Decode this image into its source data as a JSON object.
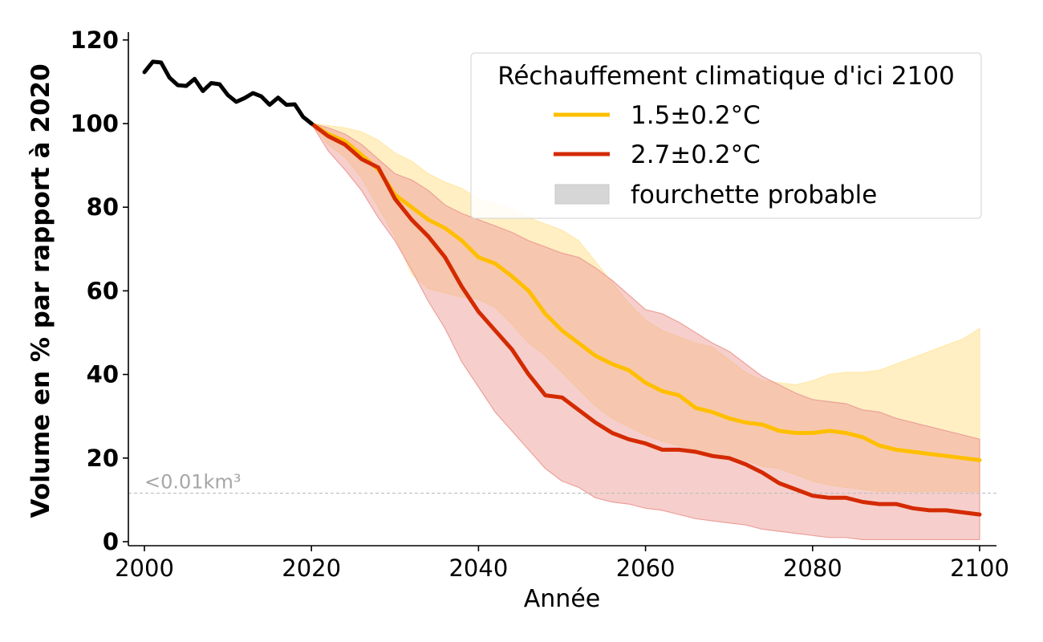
{
  "chart_data": {
    "type": "line",
    "xlabel": "Année",
    "ylabel": "Volume en % par rapport à 2020",
    "xlim": [
      1998,
      2102
    ],
    "ylim": [
      -1,
      121
    ],
    "x_ticks": [
      2000,
      2020,
      2040,
      2060,
      2080,
      2100
    ],
    "y_ticks": [
      0,
      20,
      40,
      60,
      80,
      100,
      120
    ],
    "grid": false,
    "legend": {
      "title": "Réchauffement climatique d'ici 2100",
      "placement": "top-right",
      "entries": [
        "1.5±0.2°C",
        "2.7±0.2°C",
        "fourchette probable"
      ]
    },
    "threshold": {
      "y": 11.6,
      "label": "<0.01km³"
    },
    "colors": {
      "historical": "#000000",
      "low": "#ffbf00",
      "high": "#d42a00",
      "low_band": "#ffe9ad",
      "high_band": "#eda09a",
      "legend_band": "#d6d6d6",
      "threshold": "#bdbdbd"
    },
    "historical": {
      "x": [
        2000,
        2001,
        2002,
        2003,
        2004,
        2005,
        2006,
        2007,
        2008,
        2009,
        2010,
        2011,
        2012,
        2013,
        2014,
        2015,
        2016,
        2017,
        2018,
        2019,
        2020
      ],
      "y": [
        112.3,
        114.8,
        114.6,
        111.0,
        109.2,
        109.0,
        110.7,
        107.8,
        109.7,
        109.4,
        106.8,
        105.2,
        106.1,
        107.3,
        106.5,
        104.5,
        106.2,
        104.5,
        104.6,
        101.6,
        100.0
      ]
    },
    "series": [
      {
        "name": "1.5±0.2°C",
        "x": [
          2020,
          2022,
          2024,
          2026,
          2028,
          2030,
          2032,
          2034,
          2036,
          2038,
          2040,
          2042,
          2044,
          2046,
          2048,
          2050,
          2052,
          2054,
          2056,
          2058,
          2060,
          2062,
          2064,
          2066,
          2068,
          2070,
          2072,
          2074,
          2076,
          2078,
          2080,
          2082,
          2084,
          2086,
          2088,
          2090,
          2092,
          2094,
          2096,
          2098,
          2100
        ],
        "y": [
          100.0,
          97.5,
          95.8,
          92.5,
          89.0,
          83.0,
          80.0,
          77.0,
          75.0,
          72.0,
          68.0,
          66.5,
          63.5,
          60.0,
          54.5,
          50.5,
          47.5,
          44.5,
          42.5,
          41.0,
          38.0,
          36.0,
          35.0,
          32.0,
          31.0,
          29.5,
          28.5,
          28.0,
          26.5,
          26.0,
          26.0,
          26.5,
          26.0,
          25.0,
          23.0,
          22.0,
          21.5,
          21.0,
          20.5,
          20.0,
          19.5
        ],
        "lower": [
          100.0,
          95.0,
          92.0,
          87.0,
          80.0,
          73.0,
          64.0,
          60.5,
          59.5,
          58.5,
          58.0,
          56.0,
          52.0,
          47.5,
          44.5,
          40.5,
          36.5,
          32.5,
          29.5,
          27.5,
          25.5,
          24.0,
          23.0,
          22.0,
          21.0,
          20.0,
          19.5,
          18.0,
          17.5,
          16.0,
          14.5,
          13.5,
          13.0,
          12.5,
          12.0,
          12.0,
          12.0,
          12.0,
          12.0,
          12.0,
          12.0
        ],
        "upper": [
          100.0,
          99.5,
          99.0,
          98.0,
          96.0,
          93.0,
          91.0,
          88.0,
          86.0,
          84.5,
          82.0,
          81.0,
          79.5,
          77.5,
          76.0,
          74.5,
          72.0,
          67.0,
          62.0,
          57.0,
          53.0,
          50.5,
          49.0,
          47.5,
          46.5,
          43.5,
          40.5,
          38.5,
          38.0,
          37.5,
          38.5,
          40.0,
          40.5,
          40.5,
          41.0,
          42.5,
          44.0,
          45.5,
          47.0,
          48.5,
          51.0
        ]
      },
      {
        "name": "2.7±0.2°C",
        "x": [
          2020,
          2022,
          2024,
          2026,
          2028,
          2030,
          2032,
          2034,
          2036,
          2038,
          2040,
          2042,
          2044,
          2046,
          2048,
          2050,
          2052,
          2054,
          2056,
          2058,
          2060,
          2062,
          2064,
          2066,
          2068,
          2070,
          2072,
          2074,
          2076,
          2078,
          2080,
          2082,
          2084,
          2086,
          2088,
          2090,
          2092,
          2094,
          2096,
          2098,
          2100
        ],
        "y": [
          100.0,
          97.0,
          95.0,
          91.5,
          89.5,
          82.0,
          77.0,
          73.0,
          68.0,
          61.0,
          55.0,
          50.5,
          46.0,
          40.0,
          35.0,
          34.5,
          31.5,
          28.5,
          26.0,
          24.5,
          23.5,
          22.0,
          22.0,
          21.5,
          20.5,
          20.0,
          18.5,
          16.5,
          14.0,
          12.5,
          11.0,
          10.5,
          10.5,
          9.5,
          9.0,
          9.0,
          8.0,
          7.5,
          7.5,
          7.0,
          6.5
        ],
        "lower": [
          100.0,
          93.5,
          89.0,
          84.0,
          77.5,
          72.0,
          65.0,
          57.5,
          51.0,
          43.0,
          37.0,
          31.0,
          26.5,
          22.0,
          17.5,
          14.5,
          13.0,
          10.5,
          9.5,
          9.0,
          8.0,
          7.5,
          6.5,
          5.5,
          5.0,
          4.5,
          4.0,
          3.0,
          2.5,
          2.0,
          1.5,
          1.0,
          1.0,
          0.5,
          0.5,
          0.5,
          0.5,
          0.5,
          0.5,
          0.5,
          0.5
        ],
        "upper": [
          100.0,
          99.0,
          97.5,
          95.0,
          91.5,
          88.0,
          86.5,
          84.0,
          80.5,
          78.5,
          77.0,
          75.5,
          74.0,
          72.0,
          70.5,
          69.0,
          68.0,
          65.5,
          62.5,
          59.0,
          55.5,
          54.5,
          52.5,
          50.0,
          47.5,
          45.5,
          42.5,
          39.5,
          37.5,
          35.5,
          34.0,
          33.5,
          33.0,
          31.5,
          31.0,
          29.5,
          28.5,
          27.5,
          26.5,
          25.5,
          24.5
        ]
      }
    ]
  }
}
